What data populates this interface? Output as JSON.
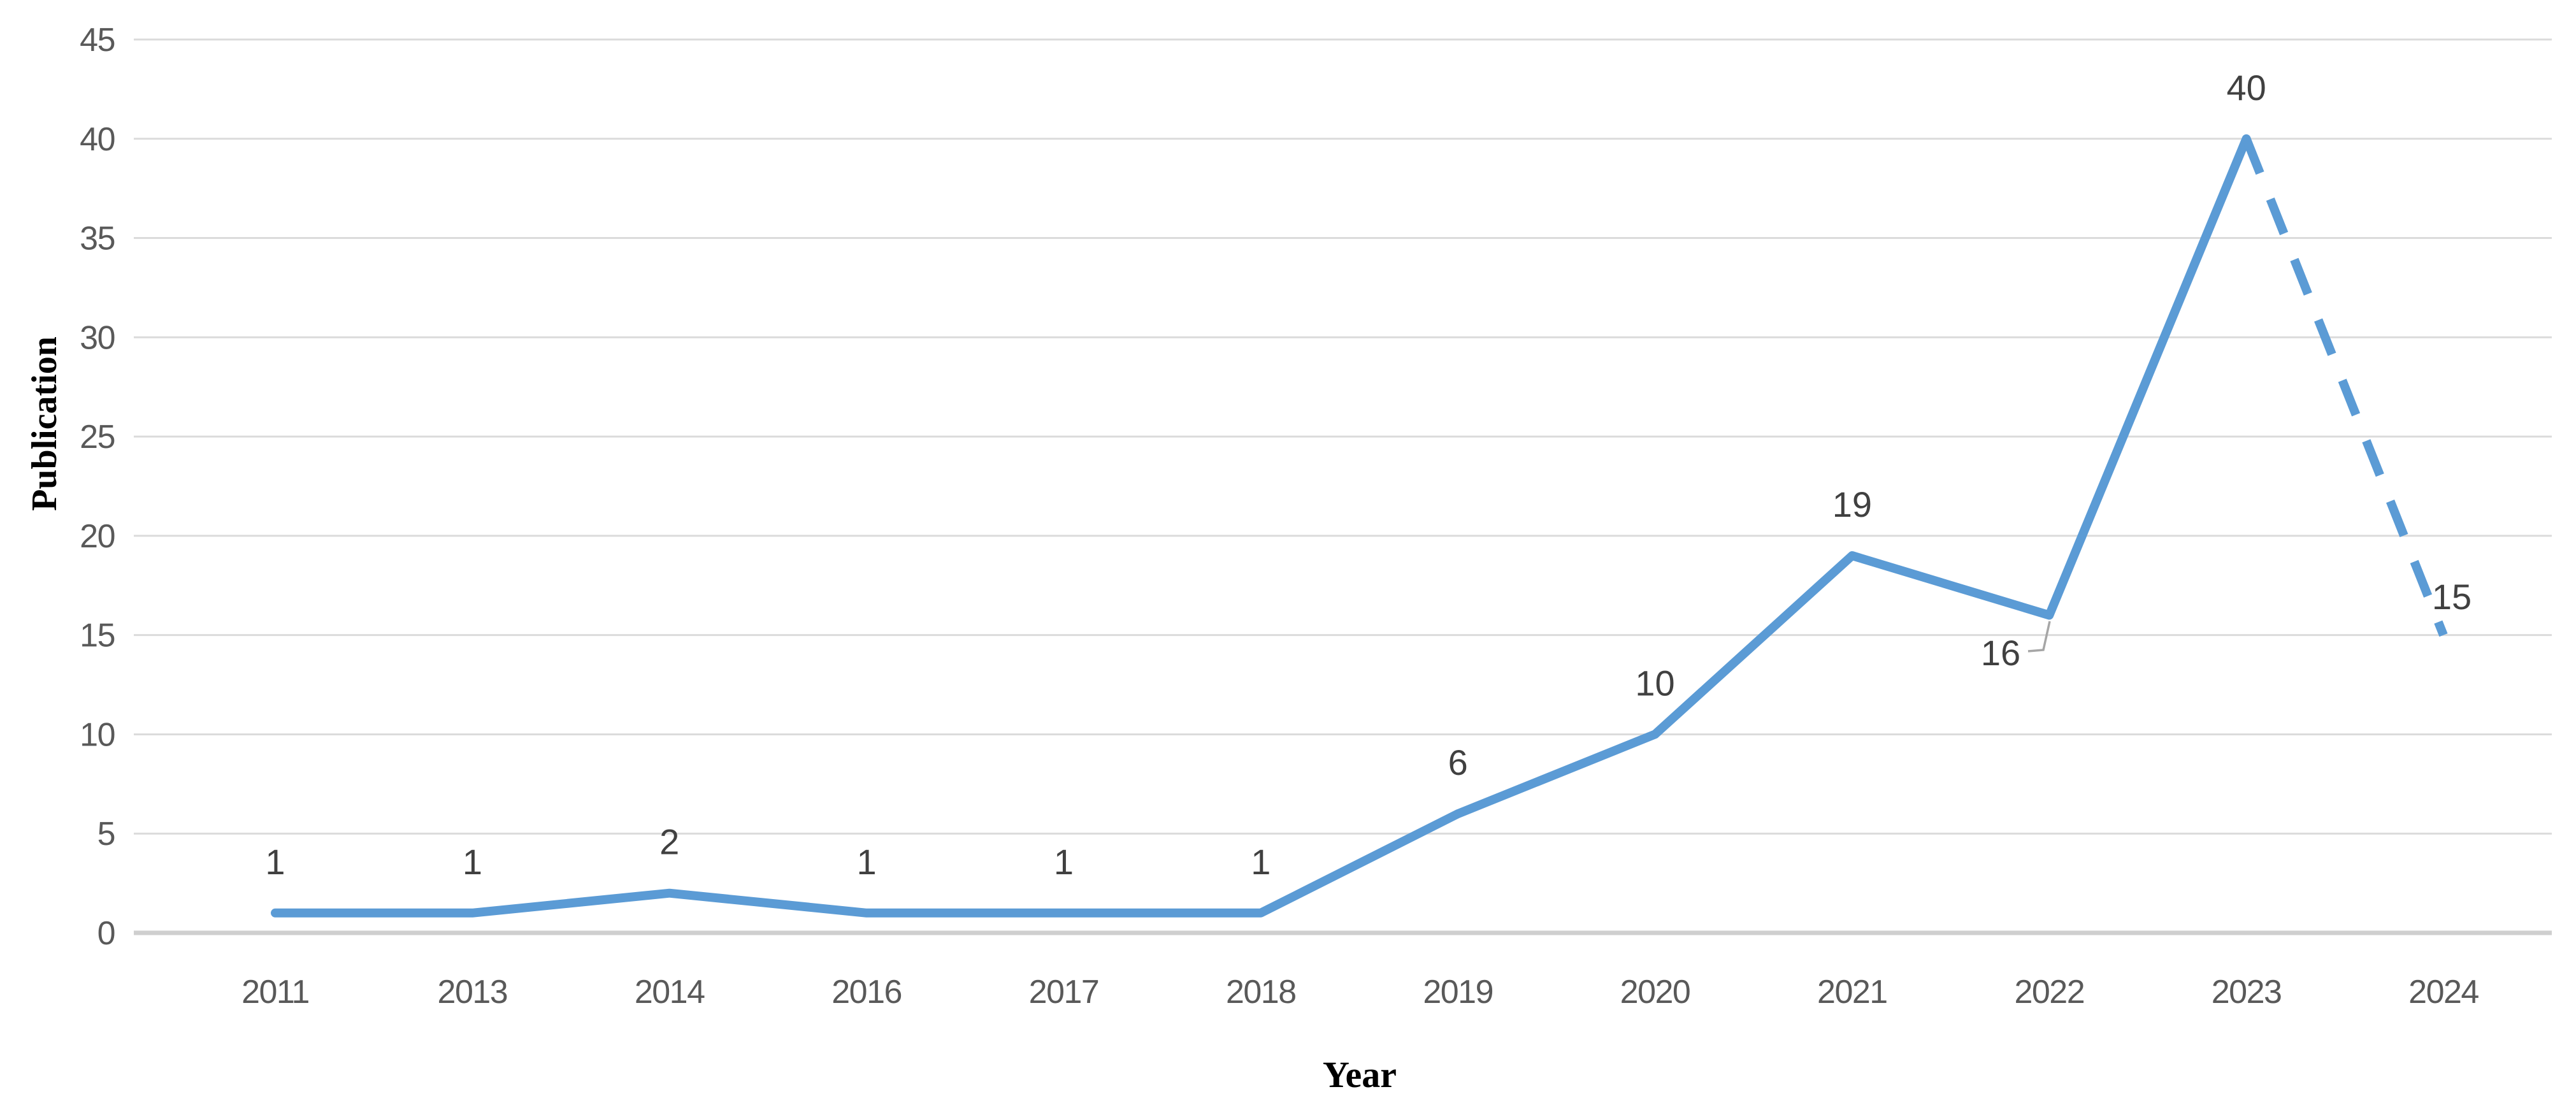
{
  "chart_data": {
    "type": "line",
    "title": "",
    "xlabel": "Year",
    "ylabel": "Publication",
    "categories": [
      "2011",
      "2013",
      "2014",
      "2016",
      "2017",
      "2018",
      "2019",
      "2020",
      "2021",
      "2022",
      "2023",
      "2024"
    ],
    "series": [
      {
        "name": "Publication",
        "values": [
          1,
          1,
          2,
          1,
          1,
          1,
          6,
          10,
          19,
          16,
          40,
          15
        ]
      }
    ],
    "data_labels": [
      "1",
      "1",
      "2",
      "1",
      "1",
      "1",
      "6",
      "10",
      "19",
      "16",
      "40",
      "15"
    ],
    "yticks": [
      0,
      5,
      10,
      15,
      20,
      25,
      30,
      35,
      40,
      45
    ],
    "ylim": [
      0,
      45
    ],
    "grid": true,
    "legend": false,
    "style": {
      "line_color": "#5B9BD5",
      "dashed_from_category": "2023",
      "dashed_to_category": "2024",
      "moved_label": {
        "category": "2022",
        "position": "below-left",
        "leader_line": true
      },
      "gridline_color": "#DBDBDB",
      "axis_line_color": "#CFCFCF",
      "tick_label_color": "#595959",
      "data_label_color": "#404040",
      "leader_line_color": "#A6A6A6"
    }
  }
}
